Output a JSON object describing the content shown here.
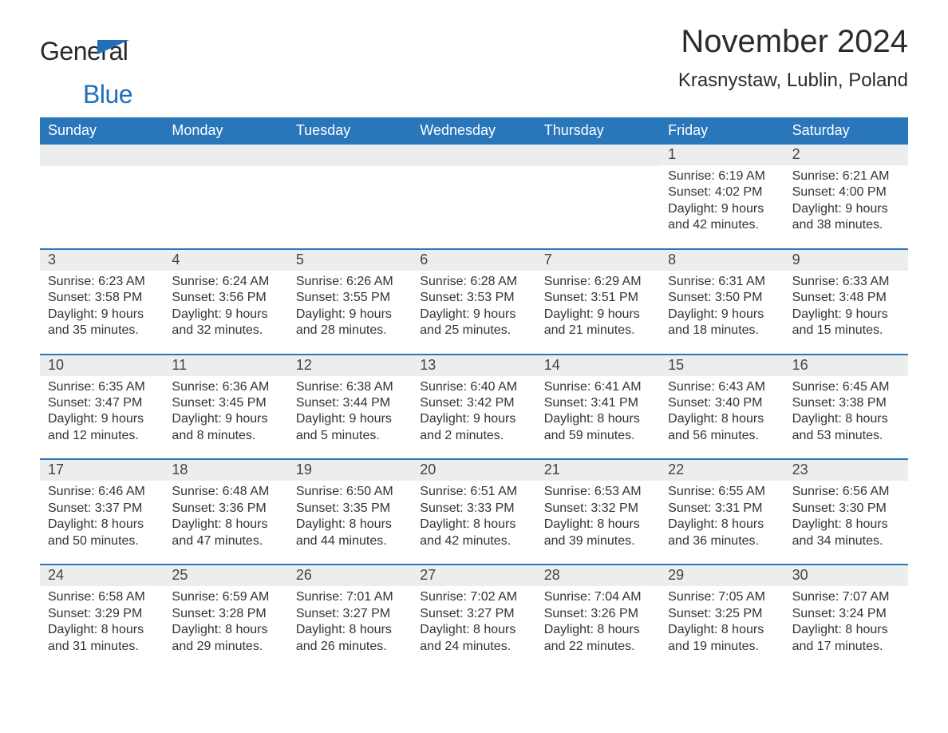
{
  "brand": {
    "line1": "General",
    "line2": "Blue"
  },
  "title": "November 2024",
  "location": "Krasnystaw, Lublin, Poland",
  "colors": {
    "header_bg": "#2a76bb",
    "header_text": "#ffffff",
    "daybar_bg": "#eceded",
    "brand_accent": "#1f70b8",
    "body_text": "#333333"
  },
  "weekdays": [
    "Sunday",
    "Monday",
    "Tuesday",
    "Wednesday",
    "Thursday",
    "Friday",
    "Saturday"
  ],
  "weeks": [
    [
      null,
      null,
      null,
      null,
      null,
      {
        "n": "1",
        "sr": "Sunrise: 6:19 AM",
        "ss": "Sunset: 4:02 PM",
        "d1": "Daylight: 9 hours",
        "d2": "and 42 minutes."
      },
      {
        "n": "2",
        "sr": "Sunrise: 6:21 AM",
        "ss": "Sunset: 4:00 PM",
        "d1": "Daylight: 9 hours",
        "d2": "and 38 minutes."
      }
    ],
    [
      {
        "n": "3",
        "sr": "Sunrise: 6:23 AM",
        "ss": "Sunset: 3:58 PM",
        "d1": "Daylight: 9 hours",
        "d2": "and 35 minutes."
      },
      {
        "n": "4",
        "sr": "Sunrise: 6:24 AM",
        "ss": "Sunset: 3:56 PM",
        "d1": "Daylight: 9 hours",
        "d2": "and 32 minutes."
      },
      {
        "n": "5",
        "sr": "Sunrise: 6:26 AM",
        "ss": "Sunset: 3:55 PM",
        "d1": "Daylight: 9 hours",
        "d2": "and 28 minutes."
      },
      {
        "n": "6",
        "sr": "Sunrise: 6:28 AM",
        "ss": "Sunset: 3:53 PM",
        "d1": "Daylight: 9 hours",
        "d2": "and 25 minutes."
      },
      {
        "n": "7",
        "sr": "Sunrise: 6:29 AM",
        "ss": "Sunset: 3:51 PM",
        "d1": "Daylight: 9 hours",
        "d2": "and 21 minutes."
      },
      {
        "n": "8",
        "sr": "Sunrise: 6:31 AM",
        "ss": "Sunset: 3:50 PM",
        "d1": "Daylight: 9 hours",
        "d2": "and 18 minutes."
      },
      {
        "n": "9",
        "sr": "Sunrise: 6:33 AM",
        "ss": "Sunset: 3:48 PM",
        "d1": "Daylight: 9 hours",
        "d2": "and 15 minutes."
      }
    ],
    [
      {
        "n": "10",
        "sr": "Sunrise: 6:35 AM",
        "ss": "Sunset: 3:47 PM",
        "d1": "Daylight: 9 hours",
        "d2": "and 12 minutes."
      },
      {
        "n": "11",
        "sr": "Sunrise: 6:36 AM",
        "ss": "Sunset: 3:45 PM",
        "d1": "Daylight: 9 hours",
        "d2": "and 8 minutes."
      },
      {
        "n": "12",
        "sr": "Sunrise: 6:38 AM",
        "ss": "Sunset: 3:44 PM",
        "d1": "Daylight: 9 hours",
        "d2": "and 5 minutes."
      },
      {
        "n": "13",
        "sr": "Sunrise: 6:40 AM",
        "ss": "Sunset: 3:42 PM",
        "d1": "Daylight: 9 hours",
        "d2": "and 2 minutes."
      },
      {
        "n": "14",
        "sr": "Sunrise: 6:41 AM",
        "ss": "Sunset: 3:41 PM",
        "d1": "Daylight: 8 hours",
        "d2": "and 59 minutes."
      },
      {
        "n": "15",
        "sr": "Sunrise: 6:43 AM",
        "ss": "Sunset: 3:40 PM",
        "d1": "Daylight: 8 hours",
        "d2": "and 56 minutes."
      },
      {
        "n": "16",
        "sr": "Sunrise: 6:45 AM",
        "ss": "Sunset: 3:38 PM",
        "d1": "Daylight: 8 hours",
        "d2": "and 53 minutes."
      }
    ],
    [
      {
        "n": "17",
        "sr": "Sunrise: 6:46 AM",
        "ss": "Sunset: 3:37 PM",
        "d1": "Daylight: 8 hours",
        "d2": "and 50 minutes."
      },
      {
        "n": "18",
        "sr": "Sunrise: 6:48 AM",
        "ss": "Sunset: 3:36 PM",
        "d1": "Daylight: 8 hours",
        "d2": "and 47 minutes."
      },
      {
        "n": "19",
        "sr": "Sunrise: 6:50 AM",
        "ss": "Sunset: 3:35 PM",
        "d1": "Daylight: 8 hours",
        "d2": "and 44 minutes."
      },
      {
        "n": "20",
        "sr": "Sunrise: 6:51 AM",
        "ss": "Sunset: 3:33 PM",
        "d1": "Daylight: 8 hours",
        "d2": "and 42 minutes."
      },
      {
        "n": "21",
        "sr": "Sunrise: 6:53 AM",
        "ss": "Sunset: 3:32 PM",
        "d1": "Daylight: 8 hours",
        "d2": "and 39 minutes."
      },
      {
        "n": "22",
        "sr": "Sunrise: 6:55 AM",
        "ss": "Sunset: 3:31 PM",
        "d1": "Daylight: 8 hours",
        "d2": "and 36 minutes."
      },
      {
        "n": "23",
        "sr": "Sunrise: 6:56 AM",
        "ss": "Sunset: 3:30 PM",
        "d1": "Daylight: 8 hours",
        "d2": "and 34 minutes."
      }
    ],
    [
      {
        "n": "24",
        "sr": "Sunrise: 6:58 AM",
        "ss": "Sunset: 3:29 PM",
        "d1": "Daylight: 8 hours",
        "d2": "and 31 minutes."
      },
      {
        "n": "25",
        "sr": "Sunrise: 6:59 AM",
        "ss": "Sunset: 3:28 PM",
        "d1": "Daylight: 8 hours",
        "d2": "and 29 minutes."
      },
      {
        "n": "26",
        "sr": "Sunrise: 7:01 AM",
        "ss": "Sunset: 3:27 PM",
        "d1": "Daylight: 8 hours",
        "d2": "and 26 minutes."
      },
      {
        "n": "27",
        "sr": "Sunrise: 7:02 AM",
        "ss": "Sunset: 3:27 PM",
        "d1": "Daylight: 8 hours",
        "d2": "and 24 minutes."
      },
      {
        "n": "28",
        "sr": "Sunrise: 7:04 AM",
        "ss": "Sunset: 3:26 PM",
        "d1": "Daylight: 8 hours",
        "d2": "and 22 minutes."
      },
      {
        "n": "29",
        "sr": "Sunrise: 7:05 AM",
        "ss": "Sunset: 3:25 PM",
        "d1": "Daylight: 8 hours",
        "d2": "and 19 minutes."
      },
      {
        "n": "30",
        "sr": "Sunrise: 7:07 AM",
        "ss": "Sunset: 3:24 PM",
        "d1": "Daylight: 8 hours",
        "d2": "and 17 minutes."
      }
    ]
  ]
}
